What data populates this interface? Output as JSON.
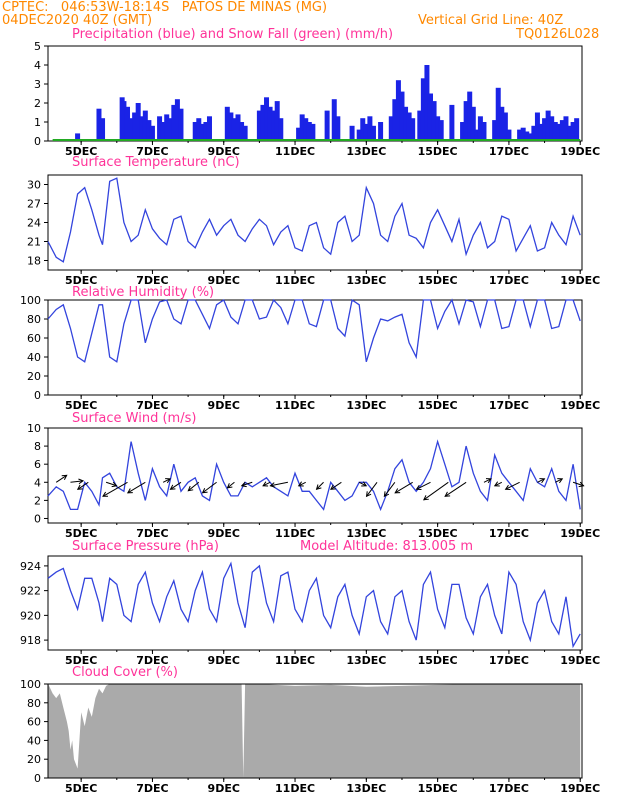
{
  "header": {
    "line1": "CPTEC:   046:53W-18:14S   PATOS DE MINAS (MG)",
    "line2": "04DEC2020 40Z (GMT)",
    "grid_note": "Vertical Grid Line: 40Z",
    "code": "TQ0126L028"
  },
  "colors": {
    "header": "#ff8800",
    "title": "#ff3399",
    "line": "#3344dd",
    "snow": "#22aa22",
    "cloud": "#aaaaaa"
  },
  "chart_data": [
    {
      "type": "bar",
      "title": "Precipitation (blue) and Snow Fall (green) (mm/h)",
      "ylim": [
        0,
        5
      ],
      "yticks": [
        0,
        1,
        2,
        3,
        4,
        5
      ],
      "xticks": [
        "5DEC",
        "7DEC",
        "9DEC",
        "11DEC",
        "13DEC",
        "15DEC",
        "17DEC",
        "19DEC"
      ],
      "xtick_day": [
        5,
        7,
        9,
        11,
        13,
        15,
        17,
        19
      ],
      "xlim_day": [
        4.07,
        19.05
      ],
      "series": [
        {
          "color": "blue",
          "days": [
            4.9,
            5.5,
            5.6,
            6.15,
            6.2,
            6.3,
            6.4,
            6.5,
            6.6,
            6.7,
            6.8,
            6.9,
            7.0,
            7.2,
            7.3,
            7.4,
            7.5,
            7.6,
            7.7,
            7.8,
            8.2,
            8.3,
            8.4,
            8.5,
            8.6,
            9.1,
            9.2,
            9.3,
            9.4,
            9.5,
            9.6,
            10.0,
            10.1,
            10.2,
            10.3,
            10.4,
            10.5,
            10.6,
            11.1,
            11.2,
            11.3,
            11.4,
            11.5,
            11.9,
            12.1,
            12.2,
            12.6,
            12.8,
            12.9,
            13.0,
            13.1,
            13.2,
            13.4,
            13.7,
            13.8,
            13.9,
            14.0,
            14.1,
            14.2,
            14.3,
            14.5,
            14.6,
            14.7,
            14.8,
            14.9,
            15.0,
            15.1,
            15.4,
            15.7,
            15.8,
            15.9,
            16.0,
            16.1,
            16.2,
            16.3,
            16.6,
            16.7,
            16.8,
            16.9,
            17.0,
            17.3,
            17.4,
            17.5,
            17.6,
            17.7,
            17.8,
            17.9,
            18.0,
            18.1,
            18.2,
            18.3,
            18.4,
            18.5,
            18.6,
            18.7,
            18.8,
            18.9
          ],
          "values": [
            0.4,
            1.7,
            1.2,
            2.3,
            2.1,
            1.8,
            1.2,
            1.5,
            2.0,
            1.3,
            1.6,
            1.1,
            0.8,
            1.3,
            1.0,
            1.4,
            1.2,
            1.9,
            2.2,
            1.7,
            1.0,
            1.2,
            0.9,
            1.0,
            1.3,
            1.8,
            1.5,
            1.2,
            1.4,
            1.0,
            0.8,
            1.6,
            1.9,
            2.3,
            1.8,
            1.6,
            2.1,
            1.2,
            0.7,
            1.4,
            1.2,
            1.0,
            0.9,
            1.6,
            2.2,
            1.3,
            0.8,
            0.6,
            1.2,
            0.9,
            1.3,
            0.8,
            1.0,
            1.3,
            2.2,
            3.2,
            2.6,
            1.8,
            1.5,
            1.2,
            1.6,
            3.3,
            4.0,
            2.5,
            2.1,
            1.3,
            1.1,
            1.9,
            1.0,
            2.1,
            2.6,
            1.8,
            0.6,
            1.3,
            1.0,
            1.1,
            2.8,
            1.8,
            1.5,
            0.6,
            0.6,
            0.7,
            0.5,
            0.4,
            0.8,
            1.5,
            0.9,
            1.2,
            1.6,
            1.3,
            1.0,
            0.9,
            1.1,
            1.3,
            0.8,
            1.0,
            1.2
          ]
        },
        {
          "color": "green",
          "days": [
            4.2,
            19.0
          ],
          "values": [
            0,
            0
          ]
        }
      ]
    },
    {
      "type": "line",
      "title": "Surface Temperature (nC)",
      "ylim": [
        16.5,
        31.5
      ],
      "yticks": [
        18,
        21,
        24,
        27,
        30
      ],
      "x_day": [
        4.07,
        4.3,
        4.5,
        4.7,
        4.9,
        5.1,
        5.3,
        5.5,
        5.6,
        5.8,
        6.0,
        6.2,
        6.4,
        6.6,
        6.8,
        7.0,
        7.2,
        7.4,
        7.6,
        7.8,
        8.0,
        8.2,
        8.4,
        8.6,
        8.8,
        9.0,
        9.2,
        9.4,
        9.6,
        9.8,
        10.0,
        10.2,
        10.4,
        10.6,
        10.8,
        11.0,
        11.2,
        11.4,
        11.6,
        11.8,
        12.0,
        12.2,
        12.4,
        12.6,
        12.8,
        13.0,
        13.2,
        13.4,
        13.6,
        13.8,
        14.0,
        14.2,
        14.4,
        14.6,
        14.8,
        15.0,
        15.2,
        15.4,
        15.6,
        15.8,
        16.0,
        16.2,
        16.4,
        16.6,
        16.8,
        17.0,
        17.2,
        17.4,
        17.6,
        17.8,
        18.0,
        18.2,
        18.4,
        18.6,
        18.8,
        19.0
      ],
      "y": [
        21.0,
        18.5,
        17.8,
        22.5,
        28.5,
        29.5,
        26.0,
        22.0,
        20.5,
        30.5,
        31.0,
        24.0,
        21.0,
        22.0,
        26.0,
        23.0,
        21.5,
        20.5,
        24.5,
        25.0,
        21.0,
        20.0,
        22.5,
        24.5,
        22.0,
        23.5,
        24.5,
        22.0,
        21.0,
        23.0,
        24.5,
        23.5,
        20.5,
        22.5,
        23.5,
        20.0,
        19.5,
        23.5,
        24.0,
        20.0,
        19.0,
        24.0,
        25.0,
        21.0,
        22.0,
        29.5,
        27.0,
        22.0,
        21.0,
        25.0,
        27.0,
        22.0,
        21.5,
        20.0,
        24.0,
        26.0,
        23.5,
        21.0,
        24.5,
        19.0,
        22.0,
        24.0,
        20.0,
        21.0,
        25.0,
        24.5,
        19.5,
        21.5,
        23.5,
        19.5,
        20.0,
        24.0,
        22.0,
        20.5,
        25.0,
        22.0
      ]
    },
    {
      "type": "line",
      "title": "Relative Humidity (%)",
      "ylim": [
        0,
        100
      ],
      "yticks": [
        0,
        20,
        40,
        60,
        80,
        100
      ],
      "x_day": [
        4.07,
        4.3,
        4.5,
        4.7,
        4.9,
        5.1,
        5.3,
        5.5,
        5.6,
        5.8,
        6.0,
        6.2,
        6.4,
        6.6,
        6.8,
        7.0,
        7.2,
        7.4,
        7.6,
        7.8,
        8.0,
        8.2,
        8.4,
        8.6,
        8.8,
        9.0,
        9.2,
        9.4,
        9.6,
        9.8,
        10.0,
        10.2,
        10.4,
        10.6,
        10.8,
        11.0,
        11.2,
        11.4,
        11.6,
        11.8,
        12.0,
        12.2,
        12.4,
        12.6,
        12.8,
        13.0,
        13.2,
        13.4,
        13.6,
        13.8,
        14.0,
        14.2,
        14.4,
        14.6,
        14.8,
        15.0,
        15.2,
        15.4,
        15.6,
        15.8,
        16.0,
        16.2,
        16.4,
        16.6,
        16.8,
        17.0,
        17.2,
        17.4,
        17.6,
        17.8,
        18.0,
        18.2,
        18.4,
        18.6,
        18.8,
        19.0
      ],
      "y": [
        80,
        90,
        95,
        70,
        40,
        35,
        65,
        95,
        95,
        40,
        35,
        75,
        100,
        100,
        55,
        80,
        98,
        100,
        80,
        75,
        100,
        100,
        85,
        70,
        95,
        100,
        82,
        75,
        100,
        100,
        80,
        82,
        100,
        92,
        75,
        100,
        100,
        75,
        72,
        100,
        100,
        70,
        62,
        100,
        95,
        35,
        60,
        80,
        78,
        82,
        85,
        55,
        40,
        100,
        100,
        70,
        88,
        100,
        75,
        100,
        98,
        72,
        100,
        100,
        70,
        72,
        100,
        100,
        72,
        100,
        100,
        70,
        72,
        100,
        100,
        78
      ]
    },
    {
      "type": "line",
      "title": "Surface Wind (m/s)",
      "ylim": [
        -0.5,
        10
      ],
      "yticks": [
        0,
        2,
        4,
        6,
        8,
        10
      ],
      "x_day": [
        4.07,
        4.3,
        4.5,
        4.7,
        4.9,
        5.1,
        5.3,
        5.5,
        5.6,
        5.8,
        6.0,
        6.2,
        6.4,
        6.6,
        6.8,
        7.0,
        7.2,
        7.4,
        7.6,
        7.8,
        8.0,
        8.2,
        8.4,
        8.6,
        8.8,
        9.0,
        9.2,
        9.4,
        9.6,
        9.8,
        10.0,
        10.2,
        10.4,
        10.6,
        10.8,
        11.0,
        11.2,
        11.4,
        11.6,
        11.8,
        12.0,
        12.2,
        12.4,
        12.6,
        12.8,
        13.0,
        13.2,
        13.4,
        13.6,
        13.8,
        14.0,
        14.2,
        14.4,
        14.6,
        14.8,
        15.0,
        15.2,
        15.4,
        15.6,
        15.8,
        16.0,
        16.2,
        16.4,
        16.6,
        16.8,
        17.0,
        17.2,
        17.4,
        17.6,
        17.8,
        18.0,
        18.2,
        18.4,
        18.6,
        18.8,
        19.0
      ],
      "y": [
        2.5,
        3.5,
        3.0,
        1.0,
        1.0,
        4.0,
        3.0,
        1.5,
        4.5,
        5.0,
        3.5,
        3.0,
        8.5,
        5.0,
        2.0,
        5.5,
        3.5,
        2.5,
        6.0,
        3.0,
        4.0,
        4.5,
        2.5,
        2.0,
        6.0,
        4.0,
        2.5,
        2.5,
        4.0,
        3.5,
        4.0,
        4.5,
        3.5,
        3.0,
        2.5,
        5.0,
        3.0,
        3.0,
        2.0,
        1.0,
        4.0,
        3.0,
        2.0,
        2.5,
        4.0,
        4.0,
        3.0,
        1.0,
        3.0,
        5.5,
        6.5,
        4.0,
        3.0,
        4.0,
        5.5,
        8.5,
        6.0,
        3.5,
        4.0,
        8.0,
        5.0,
        3.0,
        2.0,
        7.0,
        5.0,
        4.0,
        3.0,
        2.0,
        5.5,
        4.0,
        3.5,
        5.5,
        3.0,
        2.0,
        6.0,
        1.0
      ],
      "arrows": {
        "day": [
          4.3,
          4.7,
          5.2,
          5.7,
          6.3,
          6.8,
          7.3,
          7.8,
          8.3,
          8.8,
          9.3,
          9.8,
          10.3,
          10.8,
          11.3,
          11.8,
          12.3,
          12.8,
          13.3,
          13.8,
          14.3,
          14.8,
          15.3,
          15.8,
          16.3,
          16.8,
          17.3,
          17.8,
          18.3,
          18.8
        ],
        "u": [
          1.5,
          1.8,
          -1.5,
          1.5,
          -3.5,
          -2.5,
          1.0,
          -1.5,
          -1.5,
          -2.0,
          -1.0,
          -1.5,
          -1.0,
          -2.5,
          -1.0,
          -1.0,
          -1.5,
          1.0,
          -1.5,
          -1.5,
          -2.5,
          -2.0,
          -3.5,
          -3.0,
          1.0,
          -1.0,
          -2.0,
          1.0,
          1.0,
          1.5
        ],
        "v": [
          1.0,
          0.2,
          -1.0,
          -0.5,
          -2.0,
          -1.5,
          0.5,
          -1.0,
          -1.2,
          -1.5,
          -0.8,
          -0.5,
          -0.5,
          -0.5,
          -0.5,
          -1.0,
          -1.0,
          -0.5,
          -2.0,
          -2.0,
          -1.5,
          -1.0,
          -2.5,
          -2.0,
          0.5,
          -0.5,
          -1.0,
          0.5,
          0.5,
          -0.5
        ]
      }
    },
    {
      "type": "line",
      "title": "Surface Pressure (hPa)",
      "subtitle": "Model Altitude: 813.005 m",
      "ylim": [
        917.2,
        924.8
      ],
      "yticks": [
        918,
        920,
        922,
        924
      ],
      "x_day": [
        4.07,
        4.3,
        4.5,
        4.7,
        4.9,
        5.1,
        5.3,
        5.5,
        5.6,
        5.8,
        6.0,
        6.2,
        6.4,
        6.6,
        6.8,
        7.0,
        7.2,
        7.4,
        7.6,
        7.8,
        8.0,
        8.2,
        8.4,
        8.6,
        8.8,
        9.0,
        9.2,
        9.4,
        9.6,
        9.8,
        10.0,
        10.2,
        10.4,
        10.6,
        10.8,
        11.0,
        11.2,
        11.4,
        11.6,
        11.8,
        12.0,
        12.2,
        12.4,
        12.6,
        12.8,
        13.0,
        13.2,
        13.4,
        13.6,
        13.8,
        14.0,
        14.2,
        14.4,
        14.6,
        14.8,
        15.0,
        15.2,
        15.4,
        15.6,
        15.8,
        16.0,
        16.2,
        16.4,
        16.6,
        16.8,
        17.0,
        17.2,
        17.4,
        17.6,
        17.8,
        18.0,
        18.2,
        18.4,
        18.6,
        18.8,
        19.0
      ],
      "y": [
        923.0,
        923.5,
        923.8,
        922.0,
        920.5,
        923.0,
        923.0,
        921.0,
        919.5,
        923.0,
        922.5,
        920.0,
        919.5,
        922.5,
        923.5,
        921.0,
        919.5,
        921.5,
        922.8,
        920.5,
        919.5,
        922.0,
        923.5,
        920.5,
        919.5,
        923.0,
        924.2,
        921.0,
        919.0,
        923.5,
        924.0,
        921.0,
        919.5,
        923.2,
        923.5,
        920.5,
        919.5,
        922.0,
        923.0,
        920.0,
        919.0,
        921.5,
        922.5,
        920.0,
        918.5,
        921.5,
        922.0,
        919.5,
        918.5,
        921.5,
        922.0,
        919.5,
        918.0,
        922.5,
        923.5,
        920.5,
        919.0,
        922.5,
        922.5,
        919.8,
        918.5,
        921.5,
        922.5,
        920.0,
        918.5,
        923.5,
        922.5,
        919.5,
        918.0,
        921.0,
        922.0,
        919.5,
        918.5,
        921.5,
        917.5,
        918.5
      ]
    },
    {
      "type": "area",
      "title": "Cloud Cover (%)",
      "ylim": [
        0,
        100
      ],
      "yticks": [
        0,
        20,
        40,
        60,
        80,
        100
      ],
      "x_day": [
        4.07,
        4.1,
        4.2,
        4.3,
        4.4,
        4.5,
        4.6,
        4.65,
        4.7,
        4.75,
        4.8,
        4.9,
        5.0,
        5.1,
        5.2,
        5.3,
        5.4,
        5.5,
        5.6,
        5.7,
        5.8,
        5.9,
        6.0,
        6.2,
        6.4,
        6.6,
        6.8,
        7.0,
        8.0,
        9.0,
        9.5,
        9.55,
        9.6,
        10.0,
        11.0,
        12.0,
        13.0,
        14.0,
        15.0,
        16.0,
        17.0,
        18.0,
        19.0
      ],
      "y": [
        100,
        98,
        90,
        85,
        90,
        75,
        60,
        50,
        30,
        40,
        20,
        10,
        70,
        55,
        75,
        65,
        85,
        95,
        90,
        98,
        100,
        100,
        100,
        100,
        100,
        100,
        100,
        100,
        100,
        100,
        100,
        0,
        100,
        100,
        98,
        99,
        97,
        98,
        99,
        100,
        100,
        100,
        100
      ]
    }
  ]
}
